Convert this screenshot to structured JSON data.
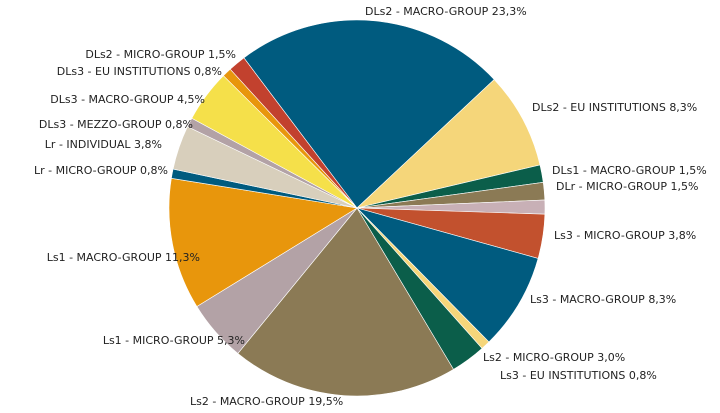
{
  "chart_data": {
    "type": "pie",
    "categories": [
      "DLs2 - MACRO-GROUP",
      "DLs2 - EU INSTITUTIONS",
      "DLs1 - MACRO-GROUP",
      "DLr - MICRO-GROUP",
      null,
      "Ls3 - MICRO-GROUP",
      "Ls3 - MACRO-GROUP",
      "Ls3 - EU INSTITUTIONS",
      "Ls2 - MICRO-GROUP",
      "Ls2 - MACRO-GROUP",
      "Ls1 - MICRO-GROUP",
      "Ls1 - MACRO-GROUP",
      "Lr - MICRO-GROUP",
      "Lr - INDIVIDUAL",
      "DLs3 - MEZZO-GROUP",
      "DLs3 - MACRO-GROUP",
      "DLs3 - EU INSTITUTIONS",
      "DLs2 - MICRO-GROUP"
    ],
    "values": [
      23.3,
      8.3,
      1.5,
      1.5,
      1.2,
      3.8,
      8.3,
      0.8,
      3.0,
      19.5,
      5.3,
      11.3,
      0.8,
      3.8,
      0.8,
      4.5,
      0.8,
      1.5
    ],
    "value_labels": [
      "23,3%",
      "8,3%",
      "1,5%",
      "1,5%",
      null,
      "3,8%",
      "8,3%",
      "0,8%",
      "3,0%",
      "19,5%",
      "5,3%",
      "11,3%",
      "0,8%",
      "3,8%",
      "0,8%",
      "4,5%",
      "0,8%",
      "1,5%"
    ],
    "colors": [
      "#005b7f",
      "#f5d67a",
      "#0b5e4a",
      "#8b7a55",
      "#c8b0b6",
      "#c2512e",
      "#005b7f",
      "#f5d67a",
      "#0b5e4a",
      "#8b7a55",
      "#b3a2a6",
      "#e8960c",
      "#005b7f",
      "#d8cfbc",
      "#b3a2a6",
      "#f5e04a",
      "#e8960c",
      "#c2412e"
    ]
  }
}
